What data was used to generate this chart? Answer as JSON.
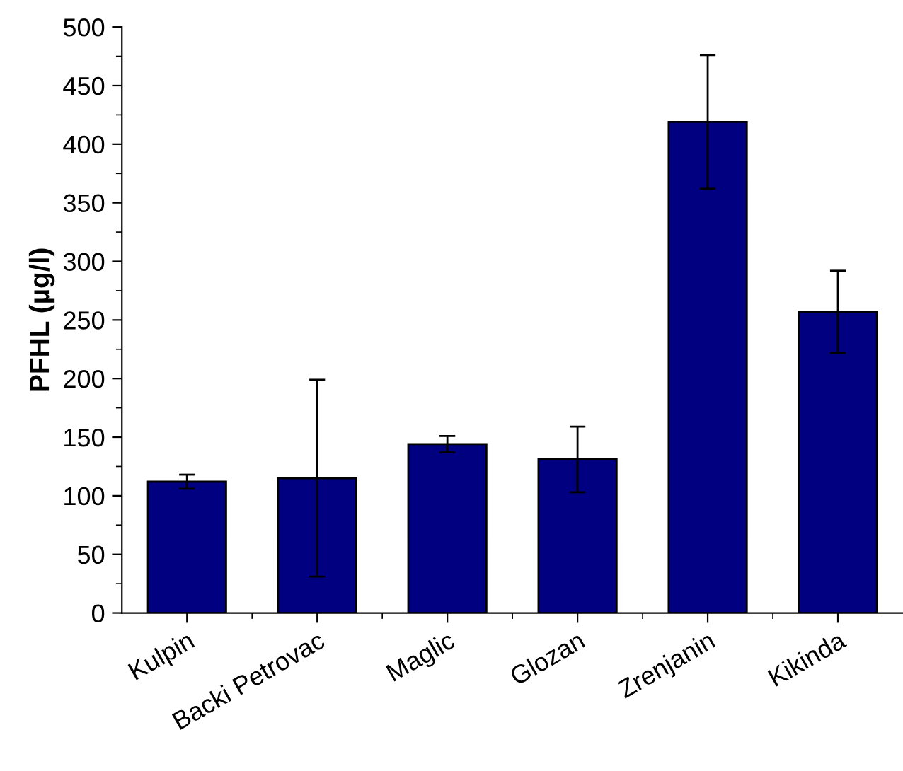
{
  "chart_data": {
    "type": "bar",
    "ylabel": "PFHL (µg/l)",
    "categories": [
      "Kulpin",
      "Backi Petrovac",
      "Maglic",
      "Glozan",
      "Zrenjanin",
      "Kikinda"
    ],
    "values": [
      112,
      115,
      144,
      131,
      419,
      257
    ],
    "errors": [
      6,
      84,
      7,
      28,
      57,
      35
    ],
    "color": "#000080",
    "ylim": [
      0,
      500
    ],
    "yticks": [
      0,
      50,
      100,
      150,
      200,
      250,
      300,
      350,
      400,
      450,
      500
    ],
    "grid": false
  }
}
